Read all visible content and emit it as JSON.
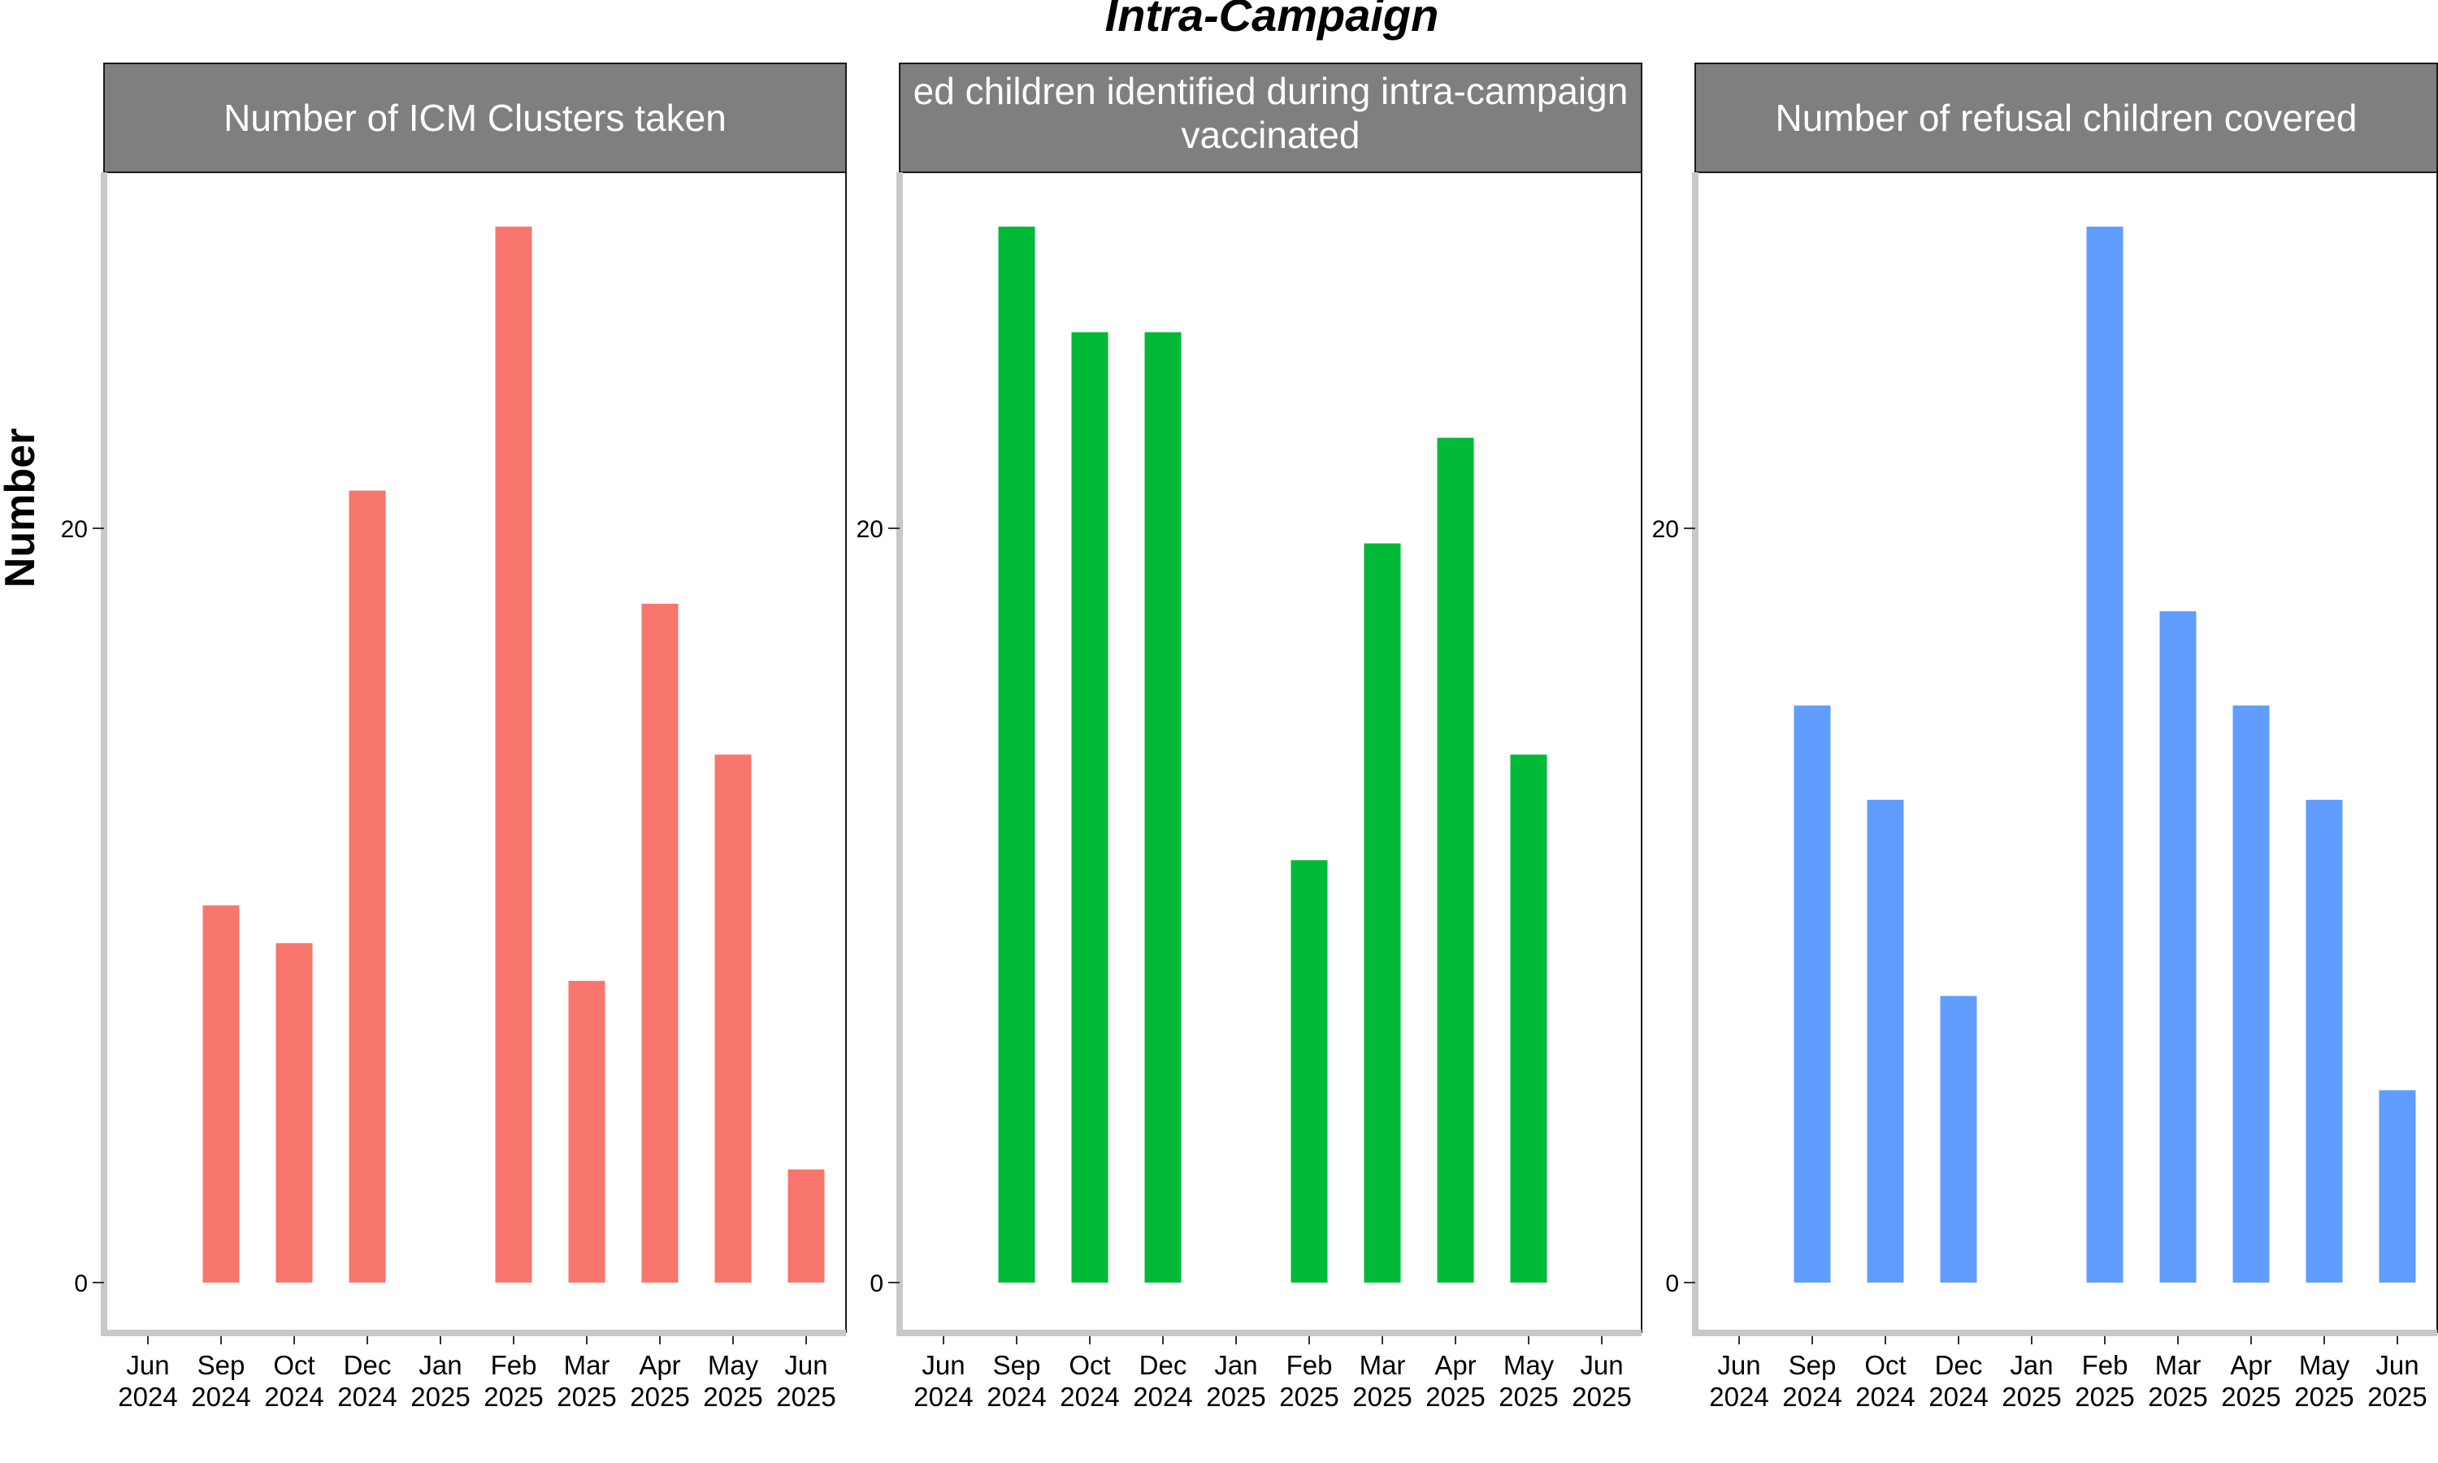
{
  "chart_data": {
    "type": "bar",
    "title": "Intra-Campaign",
    "ylabel": "Number",
    "ylim": [
      -1.3,
      29.5
    ],
    "y_ticks": [
      0,
      20
    ],
    "x_ticks": [
      "Jun\n2024",
      "Sep\n2024",
      "Oct\n2024",
      "Dec\n2024",
      "Jan\n2025",
      "Feb\n2025",
      "Mar\n2025",
      "Apr\n2025",
      "May\n2025",
      "Jun\n2025"
    ],
    "grid": false,
    "legend": "none",
    "panels": [
      {
        "title": "Number of ICM Clusters taken",
        "color": "#F8766D",
        "categories": [
          "Sep 2024",
          "Oct 2024",
          "Dec 2024",
          "Feb 2025",
          "Mar 2025",
          "Apr 2025",
          "May 2025",
          "Jun 2025"
        ],
        "values": [
          10,
          9,
          21,
          28,
          8,
          18,
          14,
          3
        ]
      },
      {
        "title": "ed children identified during intra-campaign\nvaccinated",
        "color": "#00BA38",
        "categories": [
          "Sep 2024",
          "Oct 2024",
          "Dec 2024",
          "Feb 2025",
          "Mar 2025",
          "Apr 2025",
          "May 2025"
        ],
        "values": [
          28,
          25.2,
          25.2,
          11.2,
          19.6,
          22.4,
          14
        ]
      },
      {
        "title": "Number of refusal children covered",
        "color": "#619CFF",
        "categories": [
          "Sep 2024",
          "Oct 2024",
          "Dec 2024",
          "Feb 2025",
          "Mar 2025",
          "Apr 2025",
          "May 2025",
          "Jun 2025"
        ],
        "values": [
          15.3,
          12.8,
          7.6,
          28,
          17.8,
          15.3,
          12.8,
          5.1
        ]
      }
    ]
  }
}
